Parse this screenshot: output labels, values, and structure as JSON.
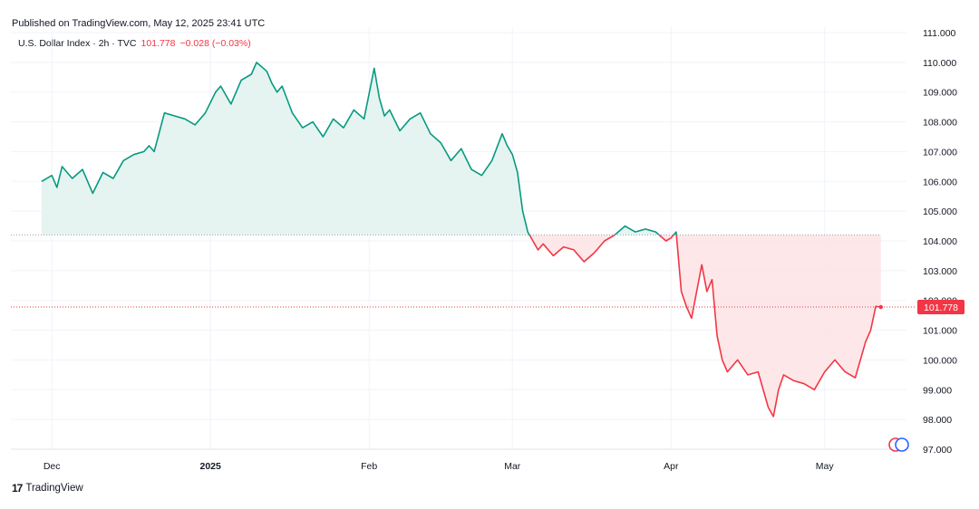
{
  "header": {
    "published": "Published on TradingView.com, May 12, 2025 23:41 UTC",
    "symbol": "U.S. Dollar Index · 2h · TVC",
    "last": "101.778",
    "change": "−0.028 (−0.03%)"
  },
  "footer": {
    "brand": "TradingView",
    "logo": "17"
  },
  "chart_data": {
    "type": "area",
    "title": "U.S. Dollar Index · 2h · TVC",
    "ylim": [
      97,
      111
    ],
    "yticks": [
      "111.000",
      "110.000",
      "109.000",
      "108.000",
      "107.000",
      "106.000",
      "105.000",
      "104.000",
      "103.000",
      "102.000",
      "101.000",
      "100.000",
      "99.000",
      "98.000",
      "97.000"
    ],
    "ytick_values": [
      111,
      110,
      109,
      108,
      107,
      106,
      105,
      104,
      103,
      102,
      101,
      100,
      99,
      98,
      97
    ],
    "xticks": [
      {
        "label": "Dec",
        "x": "2024-12-01",
        "bold": false
      },
      {
        "label": "2025",
        "x": "2025-01-01",
        "bold": true
      },
      {
        "label": "Feb",
        "x": "2025-02-01",
        "bold": false
      },
      {
        "label": "Mar",
        "x": "2025-03-01",
        "bold": false
      },
      {
        "label": "Apr",
        "x": "2025-04-01",
        "bold": false
      },
      {
        "label": "May",
        "x": "2025-05-01",
        "bold": false
      }
    ],
    "baseline": 104.2,
    "last_value": 101.778,
    "last_label": "101.778",
    "colors": {
      "up": "#089981",
      "down": "#f23645",
      "up_fill": "#e0f2ee",
      "down_fill": "#fde3e5",
      "grid": "#f0f3fa"
    },
    "series": [
      {
        "x": [
          "2024-11-29",
          "2024-12-01",
          "2024-12-02",
          "2024-12-03",
          "2024-12-05",
          "2024-12-07",
          "2024-12-09",
          "2024-12-11",
          "2024-12-13",
          "2024-12-15",
          "2024-12-17",
          "2024-12-19",
          "2024-12-20",
          "2024-12-21",
          "2024-12-23",
          "2024-12-25",
          "2024-12-27",
          "2024-12-29",
          "2024-12-31",
          "2025-01-02",
          "2025-01-03",
          "2025-01-05",
          "2025-01-07",
          "2025-01-09",
          "2025-01-10",
          "2025-01-12",
          "2025-01-13",
          "2025-01-14",
          "2025-01-15",
          "2025-01-17",
          "2025-01-19",
          "2025-01-21",
          "2025-01-23",
          "2025-01-25",
          "2025-01-27",
          "2025-01-29",
          "2025-01-31",
          "2025-02-02",
          "2025-02-03",
          "2025-02-04",
          "2025-02-05",
          "2025-02-07",
          "2025-02-09",
          "2025-02-11",
          "2025-02-13",
          "2025-02-15",
          "2025-02-17",
          "2025-02-19",
          "2025-02-21",
          "2025-02-23",
          "2025-02-25",
          "2025-02-27",
          "2025-02-28",
          "2025-03-01",
          "2025-03-02",
          "2025-03-03",
          "2025-03-04",
          "2025-03-05",
          "2025-03-06",
          "2025-03-07",
          "2025-03-09",
          "2025-03-11",
          "2025-03-13",
          "2025-03-15",
          "2025-03-17",
          "2025-03-19",
          "2025-03-21",
          "2025-03-23",
          "2025-03-25",
          "2025-03-27",
          "2025-03-29",
          "2025-03-31",
          "2025-04-01",
          "2025-04-02",
          "2025-04-03",
          "2025-04-04",
          "2025-04-05",
          "2025-04-07",
          "2025-04-08",
          "2025-04-09",
          "2025-04-10",
          "2025-04-11",
          "2025-04-12",
          "2025-04-14",
          "2025-04-16",
          "2025-04-18",
          "2025-04-20",
          "2025-04-21",
          "2025-04-22",
          "2025-04-23",
          "2025-04-25",
          "2025-04-27",
          "2025-04-29",
          "2025-05-01",
          "2025-05-03",
          "2025-05-05",
          "2025-05-07",
          "2025-05-09",
          "2025-05-10",
          "2025-05-11",
          "2025-05-12"
        ],
        "values": [
          106.0,
          106.2,
          105.8,
          106.5,
          106.1,
          106.4,
          105.6,
          106.3,
          106.1,
          106.7,
          106.9,
          107.0,
          107.2,
          107.0,
          108.3,
          108.2,
          108.1,
          107.9,
          108.3,
          109.0,
          109.2,
          108.6,
          109.4,
          109.6,
          110.0,
          109.7,
          109.3,
          109.0,
          109.2,
          108.3,
          107.8,
          108.0,
          107.5,
          108.1,
          107.8,
          108.4,
          108.1,
          109.8,
          108.8,
          108.2,
          108.4,
          107.7,
          108.1,
          108.3,
          107.6,
          107.3,
          106.7,
          107.1,
          106.4,
          106.2,
          106.7,
          107.6,
          107.2,
          106.9,
          106.3,
          105.0,
          104.3,
          104.0,
          103.7,
          103.9,
          103.5,
          103.8,
          103.7,
          103.3,
          103.6,
          104.0,
          104.2,
          104.5,
          104.3,
          104.4,
          104.3,
          104.0,
          104.1,
          104.3,
          102.3,
          101.8,
          101.4,
          103.2,
          102.3,
          102.7,
          100.8,
          100.0,
          99.6,
          100.0,
          99.5,
          99.6,
          98.4,
          98.1,
          99.0,
          99.5,
          99.3,
          99.2,
          99.0,
          99.6,
          100.0,
          99.6,
          99.4,
          100.6,
          101.0,
          101.8,
          101.778
        ]
      }
    ]
  }
}
